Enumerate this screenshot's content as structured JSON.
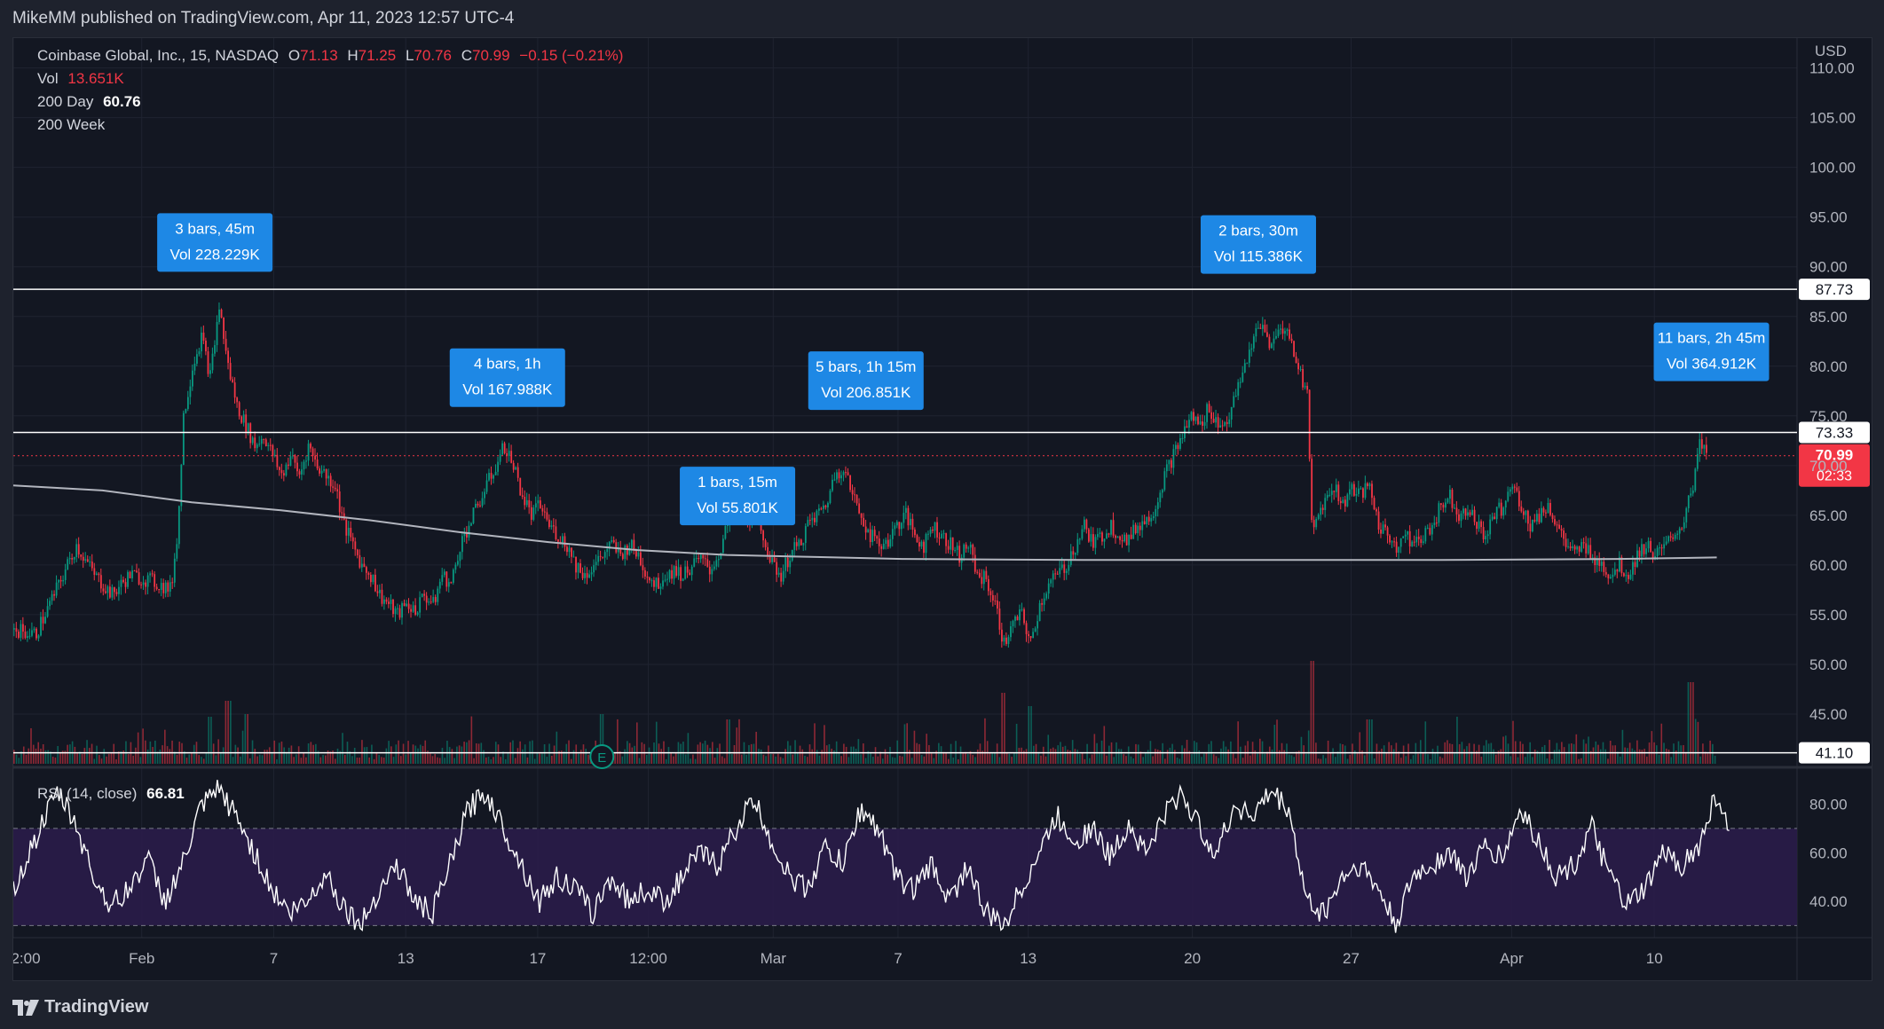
{
  "header": {
    "published": "MikeMM published on TradingView.com, Apr 11, 2023 12:57 UTC-4"
  },
  "footer": {
    "brand": "TradingView"
  },
  "legend": {
    "symbol": "Coinbase Global, Inc., 15, NASDAQ",
    "o_label": "O",
    "o": "71.13",
    "h_label": "H",
    "h": "71.25",
    "l_label": "L",
    "l": "70.76",
    "c_label": "C",
    "c": "70.99",
    "change": "−0.15 (−0.21%)",
    "vol_label": "Vol",
    "vol": "13.651K",
    "ma200d_label": "200 Day",
    "ma200d": "60.76",
    "ma200w_label": "200 Week",
    "rsi_label": "RSI (14, close)",
    "rsi": "66.81"
  },
  "colors": {
    "background": "#131722",
    "frame": "#1e222d",
    "grid": "#1f2330",
    "up": "#089981",
    "down": "#f23645",
    "hline": "#ffffff",
    "callout": "#2962ff",
    "rsi_band": "#2a1c49",
    "rsi_line": "#ffffff"
  },
  "chart_data": [
    {
      "type": "candlestick",
      "currency": "USD",
      "ylim": [
        40,
        113
      ],
      "yticks": [
        45,
        50,
        55,
        60,
        65,
        70,
        75,
        80,
        85,
        90,
        95,
        100,
        105,
        110
      ],
      "ytick_labels": [
        "45.00",
        "50.00",
        "55.00",
        "60.00",
        "65.00",
        "70.00",
        "75.00",
        "80.00",
        "85.00",
        "90.00",
        "95.00",
        "100.00",
        "105.00",
        "110.00"
      ],
      "xticks": [
        "2:00",
        "Feb",
        "7",
        "13",
        "17",
        "12:00",
        "Mar",
        "7",
        "13",
        "20",
        "27",
        "Apr",
        "10"
      ],
      "last_price": 70.99,
      "countdown": "02:33",
      "horizontal_lines": [
        {
          "value": 87.73,
          "label": "87.73"
        },
        {
          "value": 73.33,
          "label": "73.33"
        },
        {
          "value": 41.1,
          "label": "41.10"
        }
      ],
      "price_path": [
        [
          0,
          53.5
        ],
        [
          0.012,
          53
        ],
        [
          0.025,
          58
        ],
        [
          0.035,
          62
        ],
        [
          0.045,
          59
        ],
        [
          0.055,
          57
        ],
        [
          0.065,
          59
        ],
        [
          0.075,
          58.5
        ],
        [
          0.082,
          58
        ],
        [
          0.088,
          57.5
        ],
        [
          0.092,
          64
        ],
        [
          0.095,
          75
        ],
        [
          0.1,
          80
        ],
        [
          0.105,
          83
        ],
        [
          0.11,
          79
        ],
        [
          0.115,
          86
        ],
        [
          0.12,
          80
        ],
        [
          0.125,
          76
        ],
        [
          0.13,
          74
        ],
        [
          0.135,
          72
        ],
        [
          0.14,
          73
        ],
        [
          0.145,
          71
        ],
        [
          0.15,
          69
        ],
        [
          0.155,
          71
        ],
        [
          0.16,
          69
        ],
        [
          0.165,
          72
        ],
        [
          0.17,
          70
        ],
        [
          0.175,
          69
        ],
        [
          0.18,
          68
        ],
        [
          0.185,
          64
        ],
        [
          0.19,
          62
        ],
        [
          0.195,
          60
        ],
        [
          0.2,
          59
        ],
        [
          0.205,
          57
        ],
        [
          0.21,
          56
        ],
        [
          0.215,
          55
        ],
        [
          0.22,
          56
        ],
        [
          0.225,
          55.5
        ],
        [
          0.23,
          57
        ],
        [
          0.235,
          56
        ],
        [
          0.24,
          59
        ],
        [
          0.245,
          58
        ],
        [
          0.25,
          62
        ],
        [
          0.255,
          64
        ],
        [
          0.26,
          66
        ],
        [
          0.265,
          68
        ],
        [
          0.27,
          70
        ],
        [
          0.275,
          72
        ],
        [
          0.28,
          70
        ],
        [
          0.285,
          67
        ],
        [
          0.29,
          65
        ],
        [
          0.295,
          66
        ],
        [
          0.3,
          64
        ],
        [
          0.305,
          63
        ],
        [
          0.31,
          62
        ],
        [
          0.315,
          60
        ],
        [
          0.32,
          59
        ],
        [
          0.325,
          60
        ],
        [
          0.33,
          61
        ],
        [
          0.335,
          62
        ],
        [
          0.34,
          61
        ],
        [
          0.345,
          62
        ],
        [
          0.35,
          61
        ],
        [
          0.355,
          59
        ],
        [
          0.36,
          58
        ],
        [
          0.365,
          59
        ],
        [
          0.37,
          59.5
        ],
        [
          0.375,
          59
        ],
        [
          0.38,
          60
        ],
        [
          0.385,
          60.5
        ],
        [
          0.39,
          59.5
        ],
        [
          0.395,
          61
        ],
        [
          0.4,
          64
        ],
        [
          0.405,
          66
        ],
        [
          0.41,
          65
        ],
        [
          0.415,
          64.5
        ],
        [
          0.42,
          63
        ],
        [
          0.425,
          60
        ],
        [
          0.43,
          59
        ],
        [
          0.435,
          61
        ],
        [
          0.44,
          62
        ],
        [
          0.445,
          64
        ],
        [
          0.45,
          65
        ],
        [
          0.455,
          66
        ],
        [
          0.46,
          69
        ],
        [
          0.465,
          70
        ],
        [
          0.47,
          67
        ],
        [
          0.475,
          65
        ],
        [
          0.48,
          63
        ],
        [
          0.485,
          62
        ],
        [
          0.49,
          62.5
        ],
        [
          0.495,
          64
        ],
        [
          0.5,
          65
        ],
        [
          0.505,
          63
        ],
        [
          0.51,
          62
        ],
        [
          0.515,
          64
        ],
        [
          0.52,
          63
        ],
        [
          0.525,
          62
        ],
        [
          0.53,
          61
        ],
        [
          0.535,
          62
        ],
        [
          0.54,
          59
        ],
        [
          0.545,
          58.5
        ],
        [
          0.55,
          56
        ],
        [
          0.555,
          52
        ],
        [
          0.56,
          54
        ],
        [
          0.565,
          55
        ],
        [
          0.57,
          52
        ],
        [
          0.575,
          56
        ],
        [
          0.58,
          58
        ],
        [
          0.585,
          59
        ],
        [
          0.59,
          60
        ],
        [
          0.595,
          62
        ],
        [
          0.6,
          64
        ],
        [
          0.605,
          62
        ],
        [
          0.61,
          63
        ],
        [
          0.615,
          64
        ],
        [
          0.62,
          63
        ],
        [
          0.625,
          62.5
        ],
        [
          0.63,
          64
        ],
        [
          0.635,
          64.5
        ],
        [
          0.64,
          66
        ],
        [
          0.645,
          69
        ],
        [
          0.65,
          71
        ],
        [
          0.655,
          73
        ],
        [
          0.66,
          75
        ],
        [
          0.665,
          74
        ],
        [
          0.67,
          76
        ],
        [
          0.675,
          74
        ],
        [
          0.68,
          74.5
        ],
        [
          0.685,
          77
        ],
        [
          0.69,
          80
        ],
        [
          0.695,
          83
        ],
        [
          0.7,
          84
        ],
        [
          0.705,
          82
        ],
        [
          0.71,
          84
        ],
        [
          0.715,
          83
        ],
        [
          0.72,
          80
        ],
        [
          0.725,
          77
        ],
        [
          0.728,
          63
        ],
        [
          0.733,
          66
        ],
        [
          0.74,
          68
        ],
        [
          0.745,
          66
        ],
        [
          0.75,
          68
        ],
        [
          0.755,
          67
        ],
        [
          0.76,
          68
        ],
        [
          0.765,
          64
        ],
        [
          0.77,
          63
        ],
        [
          0.775,
          62
        ],
        [
          0.78,
          63
        ],
        [
          0.785,
          62
        ],
        [
          0.79,
          63
        ],
        [
          0.795,
          64
        ],
        [
          0.8,
          66
        ],
        [
          0.805,
          67
        ],
        [
          0.81,
          65
        ],
        [
          0.815,
          66
        ],
        [
          0.82,
          64
        ],
        [
          0.825,
          63
        ],
        [
          0.83,
          65
        ],
        [
          0.835,
          66
        ],
        [
          0.84,
          68
        ],
        [
          0.845,
          66
        ],
        [
          0.85,
          64
        ],
        [
          0.855,
          65
        ],
        [
          0.86,
          66
        ],
        [
          0.865,
          64
        ],
        [
          0.87,
          62
        ],
        [
          0.875,
          61
        ],
        [
          0.88,
          62
        ],
        [
          0.885,
          61
        ],
        [
          0.89,
          60
        ],
        [
          0.895,
          59
        ],
        [
          0.9,
          60
        ],
        [
          0.905,
          59
        ],
        [
          0.91,
          61
        ],
        [
          0.915,
          62
        ],
        [
          0.92,
          61
        ],
        [
          0.925,
          61.5
        ],
        [
          0.93,
          63
        ],
        [
          0.935,
          64
        ],
        [
          0.94,
          67
        ],
        [
          0.945,
          72
        ],
        [
          0.95,
          71
        ]
      ],
      "ma_200day": [
        [
          0,
          68
        ],
        [
          0.05,
          67.5
        ],
        [
          0.1,
          66.3
        ],
        [
          0.15,
          65.5
        ],
        [
          0.2,
          64.5
        ],
        [
          0.25,
          63.3
        ],
        [
          0.3,
          62.3
        ],
        [
          0.35,
          61.5
        ],
        [
          0.4,
          61
        ],
        [
          0.45,
          60.8
        ],
        [
          0.5,
          60.6
        ],
        [
          0.6,
          60.5
        ],
        [
          0.7,
          60.5
        ],
        [
          0.8,
          60.5
        ],
        [
          0.9,
          60.6
        ],
        [
          0.955,
          60.76
        ]
      ],
      "callouts": [
        {
          "bars": "3 bars, 45m",
          "vol": "Vol 228.229K",
          "x": 0.113,
          "y": 89.5
        },
        {
          "bars": "4 bars, 1h",
          "vol": "Vol 167.988K",
          "x": 0.277,
          "y": 75.9
        },
        {
          "bars": "5 bars, 1h 15m",
          "vol": "Vol 206.851K",
          "x": 0.478,
          "y": 75.6
        },
        {
          "bars": "1 bars, 15m",
          "vol": "Vol 55.801K",
          "x": 0.406,
          "y": 64.0
        },
        {
          "bars": "2 bars, 30m",
          "vol": "Vol 115.386K",
          "x": 0.698,
          "y": 89.3
        },
        {
          "bars": "11 bars, 2h 45m",
          "vol": "Vol 364.912K",
          "x": 0.952,
          "y": 78.5
        }
      ],
      "earnings_marker": {
        "x": 0.33,
        "label": "E"
      }
    },
    {
      "type": "line",
      "name": "RSI (14, close)",
      "ylim": [
        25,
        93
      ],
      "yticks": [
        40,
        60,
        80
      ],
      "ytick_labels": [
        "40.00",
        "60.00",
        "80.00"
      ],
      "band": [
        30,
        70
      ],
      "last": 66.81,
      "rsi_path": [
        [
          0,
          45
        ],
        [
          0.015,
          70
        ],
        [
          0.025,
          85
        ],
        [
          0.035,
          72
        ],
        [
          0.045,
          50
        ],
        [
          0.055,
          38
        ],
        [
          0.065,
          45
        ],
        [
          0.075,
          58
        ],
        [
          0.085,
          40
        ],
        [
          0.095,
          55
        ],
        [
          0.105,
          78
        ],
        [
          0.115,
          86
        ],
        [
          0.125,
          75
        ],
        [
          0.135,
          60
        ],
        [
          0.145,
          45
        ],
        [
          0.155,
          35
        ],
        [
          0.165,
          40
        ],
        [
          0.175,
          52
        ],
        [
          0.185,
          38
        ],
        [
          0.195,
          30
        ],
        [
          0.205,
          45
        ],
        [
          0.215,
          55
        ],
        [
          0.225,
          40
        ],
        [
          0.235,
          35
        ],
        [
          0.245,
          55
        ],
        [
          0.255,
          78
        ],
        [
          0.265,
          85
        ],
        [
          0.275,
          70
        ],
        [
          0.285,
          55
        ],
        [
          0.295,
          40
        ],
        [
          0.305,
          50
        ],
        [
          0.315,
          45
        ],
        [
          0.325,
          35
        ],
        [
          0.335,
          50
        ],
        [
          0.345,
          40
        ],
        [
          0.355,
          45
        ],
        [
          0.365,
          40
        ],
        [
          0.375,
          50
        ],
        [
          0.385,
          60
        ],
        [
          0.395,
          55
        ],
        [
          0.405,
          70
        ],
        [
          0.415,
          82
        ],
        [
          0.425,
          65
        ],
        [
          0.435,
          50
        ],
        [
          0.445,
          45
        ],
        [
          0.455,
          62
        ],
        [
          0.465,
          55
        ],
        [
          0.475,
          78
        ],
        [
          0.485,
          70
        ],
        [
          0.495,
          50
        ],
        [
          0.505,
          45
        ],
        [
          0.515,
          55
        ],
        [
          0.525,
          40
        ],
        [
          0.535,
          55
        ],
        [
          0.545,
          35
        ],
        [
          0.555,
          30
        ],
        [
          0.565,
          45
        ],
        [
          0.575,
          60
        ],
        [
          0.585,
          75
        ],
        [
          0.595,
          65
        ],
        [
          0.605,
          70
        ],
        [
          0.615,
          58
        ],
        [
          0.625,
          72
        ],
        [
          0.635,
          60
        ],
        [
          0.645,
          75
        ],
        [
          0.655,
          85
        ],
        [
          0.665,
          70
        ],
        [
          0.675,
          60
        ],
        [
          0.685,
          80
        ],
        [
          0.695,
          75
        ],
        [
          0.705,
          85
        ],
        [
          0.715,
          78
        ],
        [
          0.725,
          40
        ],
        [
          0.735,
          35
        ],
        [
          0.745,
          50
        ],
        [
          0.755,
          55
        ],
        [
          0.765,
          45
        ],
        [
          0.775,
          30
        ],
        [
          0.785,
          50
        ],
        [
          0.795,
          55
        ],
        [
          0.805,
          60
        ],
        [
          0.815,
          50
        ],
        [
          0.825,
          62
        ],
        [
          0.835,
          58
        ],
        [
          0.845,
          78
        ],
        [
          0.855,
          65
        ],
        [
          0.865,
          50
        ],
        [
          0.875,
          55
        ],
        [
          0.885,
          70
        ],
        [
          0.895,
          50
        ],
        [
          0.905,
          38
        ],
        [
          0.915,
          45
        ],
        [
          0.925,
          60
        ],
        [
          0.935,
          55
        ],
        [
          0.945,
          62
        ],
        [
          0.955,
          85
        ],
        [
          0.962,
          67
        ]
      ]
    }
  ]
}
